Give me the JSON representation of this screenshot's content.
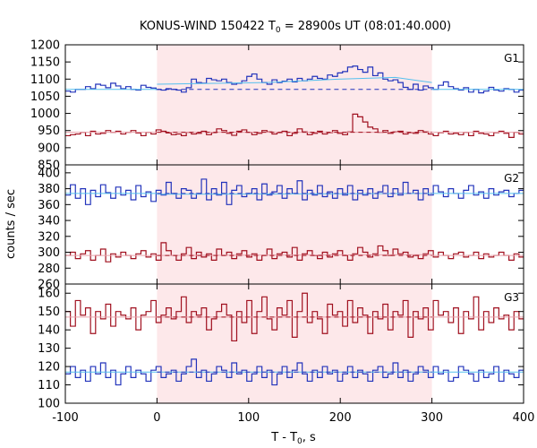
{
  "chart_data": {
    "type": "line",
    "title_main": "KONUS-WIND 150422 T",
    "title_sub": "0",
    "title_rest": " = 28900s UT (08:01:40.000)",
    "xlabel_main": "T - T",
    "xlabel_sub": "0",
    "xlabel_rest": ", s",
    "ylabel": "counts / sec",
    "xlim": [
      -100,
      400
    ],
    "xticks": [
      "-100",
      "0",
      "100",
      "200",
      "300",
      "400"
    ],
    "highlight_interval": [
      0,
      300
    ],
    "colors": {
      "highlight": "#fde8ea",
      "series_blue": "#2233bb",
      "series_red": "#a0101f",
      "fit_blue": "#55c0ee",
      "fit_red": "#e8a0aa"
    },
    "panels": [
      {
        "label": "G1",
        "ylim": [
          850,
          1200
        ],
        "yticks": [
          "850",
          "900",
          "950",
          "1000",
          "1050",
          "1100",
          "1150",
          "1200"
        ],
        "series": [
          {
            "color_key": "series_blue",
            "x0": -100,
            "dx": 5.5,
            "values": [
              1065,
              1062,
              1070,
              1070,
              1078,
              1072,
              1085,
              1082,
              1075,
              1088,
              1080,
              1072,
              1078,
              1070,
              1068,
              1082,
              1076,
              1074,
              1070,
              1068,
              1072,
              1070,
              1068,
              1062,
              1075,
              1100,
              1090,
              1088,
              1102,
              1098,
              1095,
              1100,
              1090,
              1085,
              1088,
              1095,
              1108,
              1115,
              1100,
              1090,
              1085,
              1098,
              1090,
              1094,
              1100,
              1092,
              1102,
              1095,
              1100,
              1108,
              1102,
              1100,
              1112,
              1108,
              1118,
              1122,
              1135,
              1138,
              1128,
              1120,
              1135,
              1110,
              1118,
              1100,
              1095,
              1098,
              1090,
              1076,
              1070,
              1085,
              1068,
              1080,
              1075,
              1070,
              1082,
              1092,
              1078,
              1072,
              1068,
              1075,
              1062,
              1070,
              1060,
              1065,
              1076,
              1068,
              1065,
              1072,
              1070,
              1062,
              1068,
              1065,
              1070
            ],
            "fit": {
              "baseline": 1070,
              "inner": [
                [
                  0,
                  1085
                ],
                [
                  120,
                  1090
                ],
                [
                  200,
                  1100
                ],
                [
                  260,
                  1105
                ],
                [
                  300,
                  1090
                ]
              ]
            }
          },
          {
            "color_key": "series_red",
            "x0": -100,
            "dx": 5.5,
            "values": [
              935,
              938,
              940,
              945,
              935,
              948,
              940,
              942,
              950,
              945,
              948,
              940,
              945,
              950,
              943,
              935,
              945,
              940,
              952,
              948,
              943,
              938,
              940,
              935,
              945,
              940,
              942,
              948,
              938,
              944,
              955,
              950,
              942,
              936,
              948,
              952,
              945,
              938,
              942,
              950,
              946,
              940,
              944,
              948,
              935,
              942,
              955,
              946,
              938,
              942,
              948,
              940,
              944,
              950,
              942,
              938,
              946,
              998,
              990,
              975,
              960,
              955,
              945,
              950,
              942,
              946,
              948,
              940,
              944,
              942,
              950,
              946,
              940,
              935,
              944,
              948,
              940,
              942,
              938,
              945,
              935,
              948,
              942,
              940,
              935,
              944,
              948,
              942,
              930,
              945,
              940,
              935,
              948
            ],
            "fit": {
              "baseline": 945,
              "inner": [
                [
                  0,
                  945
                ],
                [
                  300,
                  945
                ]
              ]
            }
          }
        ]
      },
      {
        "label": "G2",
        "ylim": [
          260,
          410
        ],
        "yticks": [
          "260",
          "280",
          "300",
          "320",
          "340",
          "360",
          "380",
          "400"
        ],
        "series": [
          {
            "color_key": "series_blue",
            "x0": -100,
            "dx": 5.5,
            "values": [
              372,
              385,
              368,
              380,
              360,
              378,
              370,
              385,
              375,
              368,
              382,
              372,
              378,
              366,
              384,
              370,
              376,
              364,
              378,
              372,
              388,
              374,
              368,
              380,
              378,
              368,
              374,
              392,
              366,
              380,
              372,
              388,
              360,
              378,
              384,
              370,
              374,
              380,
              366,
              386,
              372,
              376,
              384,
              368,
              380,
              374,
              390,
              366,
              378,
              372,
              384,
              370,
              376,
              368,
              380,
              372,
              384,
              366,
              378,
              372,
              380,
              368,
              376,
              384,
              370,
              380,
              372,
              388,
              374,
              378,
              366,
              380,
              372,
              384,
              376,
              370,
              380,
              374,
              368,
              378,
              384,
              372,
              376,
              368,
              380,
              372,
              376,
              378,
              370,
              374,
              378,
              372,
              376
            ],
            "fit": {
              "baseline": 374,
              "inner": [
                [
                  0,
                  373
                ],
                [
                  300,
                  374
                ]
              ]
            }
          },
          {
            "color_key": "series_red",
            "x0": -100,
            "dx": 5.5,
            "values": [
              296,
              300,
              292,
              298,
              302,
              290,
              296,
              304,
              288,
              298,
              294,
              300,
              296,
              292,
              298,
              302,
              294,
              298,
              290,
              312,
              302,
              296,
              290,
              298,
              306,
              292,
              300,
              294,
              298,
              290,
              304,
              296,
              300,
              292,
              298,
              302,
              294,
              298,
              290,
              296,
              304,
              292,
              298,
              300,
              294,
              306,
              290,
              298,
              302,
              296,
              292,
              300,
              294,
              298,
              302,
              296,
              290,
              298,
              306,
              300,
              294,
              298,
              308,
              302,
              296,
              304,
              298,
              300,
              294,
              296,
              292,
              298,
              302,
              294,
              300,
              296,
              292,
              298,
              300,
              294,
              296,
              300,
              292,
              298,
              294,
              296,
              300,
              296,
              290,
              298,
              294,
              296,
              298
            ],
            "fit": {
              "baseline": 296,
              "inner": [
                [
                  0,
                  296
                ],
                [
                  300,
                  297
                ]
              ]
            }
          }
        ]
      },
      {
        "label": "G3",
        "ylim": [
          100,
          165
        ],
        "yticks": [
          "100",
          "110",
          "120",
          "130",
          "140",
          "150",
          "160"
        ],
        "series": [
          {
            "color_key": "series_red",
            "x0": -100,
            "dx": 5.5,
            "values": [
              150,
              142,
              156,
              148,
              152,
              138,
              150,
              146,
              154,
              142,
              150,
              148,
              146,
              152,
              140,
              148,
              150,
              156,
              144,
              148,
              152,
              146,
              150,
              158,
              144,
              150,
              148,
              152,
              140,
              146,
              150,
              154,
              148,
              134,
              150,
              144,
              156,
              138,
              150,
              158,
              146,
              140,
              152,
              148,
              156,
              136,
              150,
              160,
              144,
              150,
              146,
              138,
              154,
              148,
              150,
              142,
              156,
              144,
              152,
              148,
              138,
              150,
              146,
              154,
              140,
              150,
              148,
              156,
              136,
              150,
              146,
              152,
              140,
              156,
              148,
              150,
              144,
              152,
              138,
              150,
              146,
              158,
              140,
              150,
              144,
              152,
              146,
              148,
              140,
              150,
              146,
              144,
              148
            ],
            "fit": {
              "baseline": 147,
              "inner": [
                [
                  0,
                  147
                ],
                [
                  300,
                  147
                ]
              ]
            }
          },
          {
            "color_key": "series_blue",
            "x0": -100,
            "dx": 5.5,
            "values": [
              116,
              120,
              114,
              118,
              112,
              120,
              116,
              122,
              114,
              118,
              110,
              116,
              120,
              114,
              118,
              116,
              112,
              118,
              120,
              114,
              116,
              118,
              112,
              116,
              120,
              124,
              114,
              118,
              112,
              116,
              120,
              118,
              114,
              122,
              116,
              118,
              112,
              116,
              120,
              114,
              118,
              110,
              116,
              120,
              114,
              118,
              122,
              116,
              112,
              118,
              114,
              120,
              116,
              118,
              112,
              116,
              120,
              114,
              118,
              116,
              112,
              118,
              120,
              114,
              116,
              122,
              114,
              118,
              112,
              116,
              120,
              118,
              114,
              120,
              116,
              118,
              112,
              114,
              120,
              118,
              116,
              112,
              118,
              114,
              116,
              120,
              112,
              118,
              116,
              114,
              118,
              120,
              118
            ],
            "fit": {
              "baseline": 117,
              "inner": [
                [
                  0,
                  117
                ],
                [
                  300,
                  117
                ]
              ]
            }
          }
        ]
      }
    ]
  }
}
